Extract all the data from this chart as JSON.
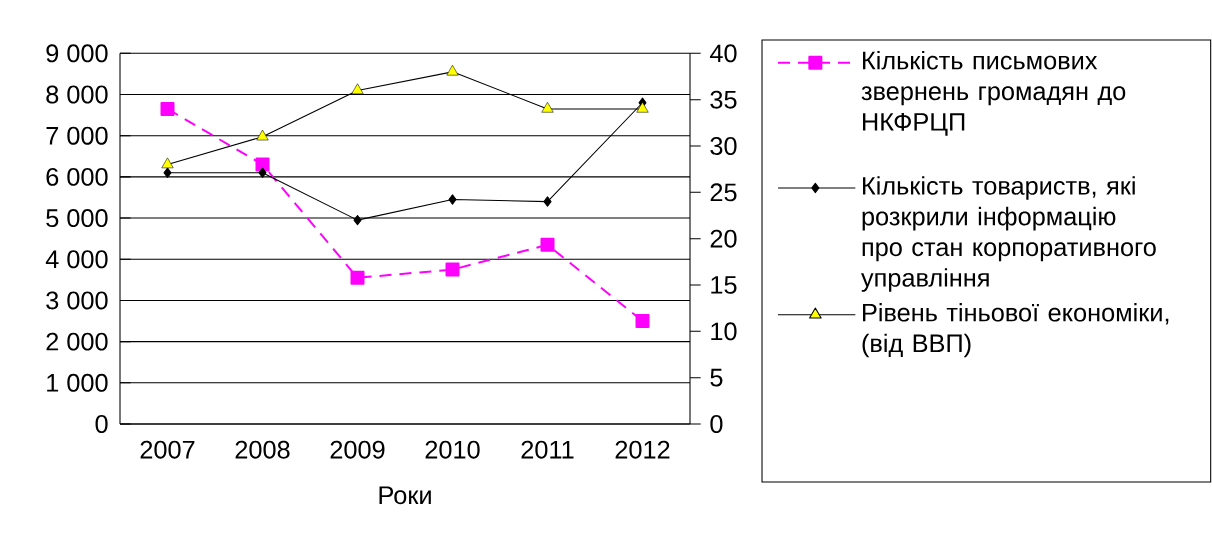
{
  "chart_data": {
    "type": "line",
    "xlabel": "Роки",
    "categories": [
      "2007",
      "2008",
      "2009",
      "2010",
      "2011",
      "2012"
    ],
    "series": [
      {
        "name": "Кількість письмових звернень громадян до НКФРЦП",
        "color": "#ff00ff",
        "marker": "square",
        "line_style": "dashed",
        "values": [
          7650,
          6300,
          3550,
          3750,
          4350,
          2500
        ]
      },
      {
        "name": "Кількість товариств, які розкрили інформацію про стан корпоративного управління",
        "color": "#000000",
        "marker": "diamond",
        "line_style": "solid",
        "values": [
          6100,
          6100,
          4950,
          5450,
          5400,
          7800
        ]
      },
      {
        "name": "Рівень тіньової економіки, (від ВВП)",
        "color": "#000000",
        "colors": [
          "#ffff00",
          "#ffff00",
          "#ffff00",
          "#ffff00",
          "#ffff00",
          "#ffff00"
        ],
        "marker": "triangle",
        "line_style": "solid",
        "axis": "y2",
        "values": [
          28,
          31,
          36,
          38,
          34,
          34
        ]
      }
    ],
    "ylim": [
      0,
      9000
    ],
    "yticks": [
      {
        "value": 0,
        "label": "0"
      },
      {
        "value": 1000,
        "label": "1 000"
      },
      {
        "value": 2000,
        "label": "2 000"
      },
      {
        "value": 3000,
        "label": "3 000"
      },
      {
        "value": 4000,
        "label": "4 000"
      },
      {
        "value": 5000,
        "label": "5 000"
      },
      {
        "value": 6000,
        "label": "6 000"
      },
      {
        "value": 7000,
        "label": "7 000"
      },
      {
        "value": 8000,
        "label": "8 000"
      },
      {
        "value": 9000,
        "label": "9 000"
      }
    ],
    "y2lim": [
      0,
      40
    ],
    "y2ticks": [
      0,
      5,
      10,
      15,
      20,
      25,
      30,
      35,
      40
    ],
    "grid": "y",
    "legend": "right"
  }
}
